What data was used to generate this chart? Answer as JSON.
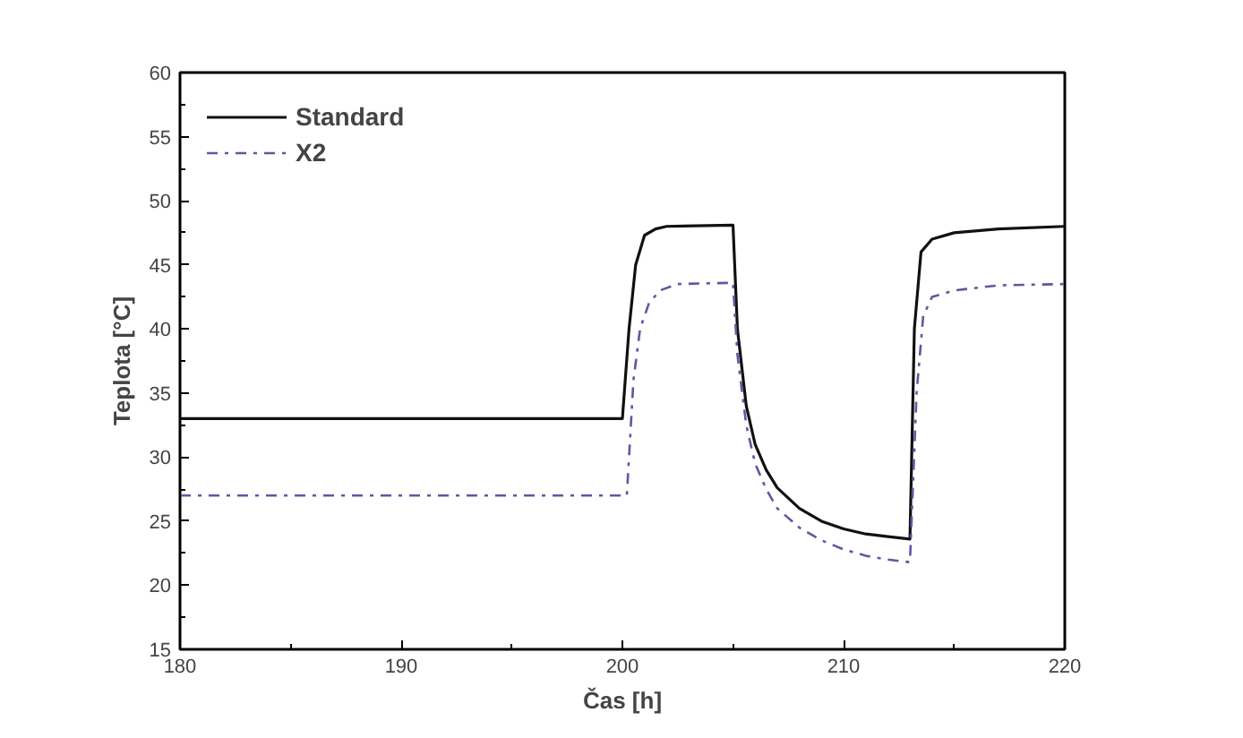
{
  "chart_data": {
    "type": "line",
    "xlabel": "Čas [h]",
    "ylabel": "Teplota [°C]",
    "xlim": [
      180,
      220
    ],
    "ylim": [
      15,
      60
    ],
    "xticks": [
      180,
      {
        "value": 185,
        "label": null
      },
      190,
      {
        "value": 195,
        "label": null
      },
      200,
      {
        "value": 205,
        "label": null
      },
      210,
      {
        "value": 215,
        "label": null
      },
      220
    ],
    "yticks": [
      15,
      {
        "value": 17.5,
        "label": null
      },
      20,
      {
        "value": 22.5,
        "label": null
      },
      25,
      {
        "value": 27.5,
        "label": null
      },
      30,
      {
        "value": 32.5,
        "label": null
      },
      35,
      {
        "value": 37.5,
        "label": null
      },
      40,
      {
        "value": 42.5,
        "label": null
      },
      45,
      {
        "value": 47.5,
        "label": null
      },
      50,
      {
        "value": 52.5,
        "label": null
      },
      55,
      {
        "value": 57.5,
        "label": null
      },
      60
    ],
    "legend": "top left",
    "grid": false,
    "series": [
      {
        "name": "Standard",
        "color": "#111111",
        "line_style": "solid",
        "x": [
          180,
          200,
          200.3,
          200.6,
          201,
          201.5,
          202,
          205,
          205.2,
          205.6,
          206,
          206.5,
          207,
          208,
          209,
          210,
          211,
          212,
          213,
          213.2,
          213.5,
          214,
          215,
          217,
          220
        ],
        "values": [
          33,
          33,
          40,
          45,
          47.3,
          47.8,
          48,
          48.1,
          40,
          34,
          31,
          29,
          27.6,
          26,
          25,
          24.4,
          24,
          23.8,
          23.6,
          40,
          46,
          47,
          47.5,
          47.8,
          48
        ]
      },
      {
        "name": "X2",
        "color": "#5a5aa0",
        "line_style": "dashdot",
        "x": [
          180,
          200.2,
          200.5,
          200.8,
          201.2,
          201.7,
          202.5,
          205,
          205.2,
          205.6,
          206,
          206.5,
          207,
          208,
          209,
          210,
          211,
          212,
          213,
          213.3,
          213.6,
          214,
          215,
          217,
          220
        ],
        "values": [
          27,
          27,
          36,
          40,
          42,
          43,
          43.5,
          43.6,
          38,
          32.5,
          29.5,
          27.5,
          26,
          24.5,
          23.5,
          22.8,
          22.3,
          22,
          21.8,
          35,
          41,
          42.5,
          43,
          43.4,
          43.5
        ]
      }
    ]
  }
}
